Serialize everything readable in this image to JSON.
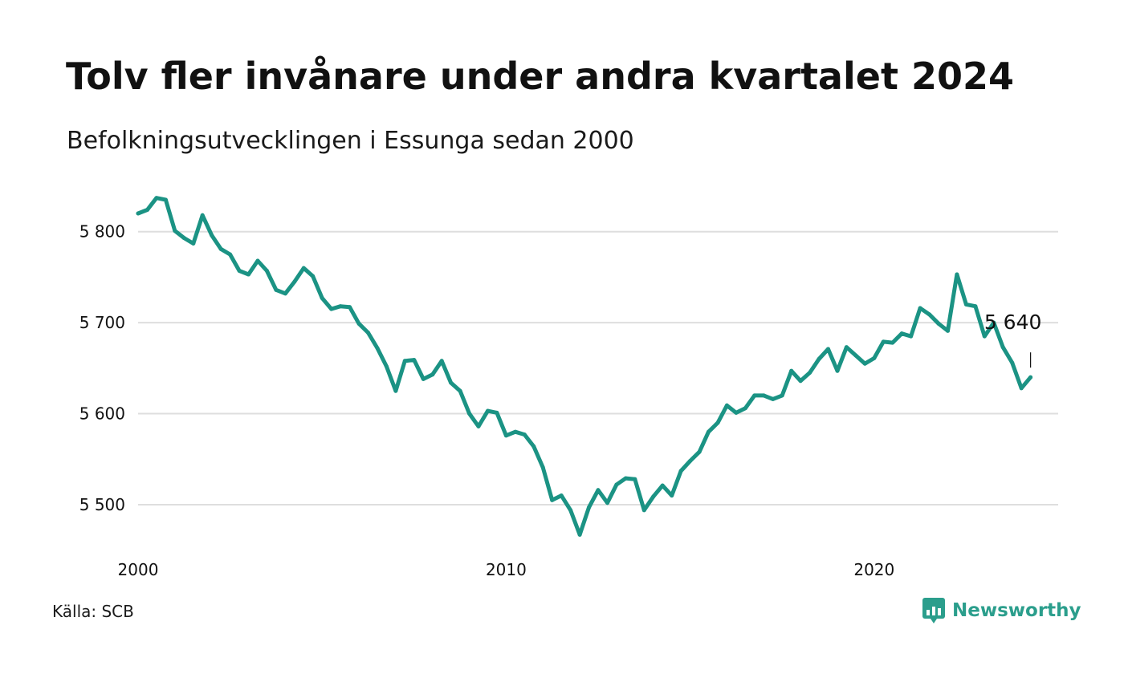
{
  "header": {
    "title": "Tolv fler invånare under andra kvartalet 2024",
    "subtitle": "Befolkningsutvecklingen i Essunga sedan 2000"
  },
  "footer": {
    "source": "Källa: SCB",
    "brand": "Newsworthy",
    "brand_icon": "newsworthy-chart-bubble-icon"
  },
  "colors": {
    "line": "#1b9384",
    "grid": "#dedede",
    "brand": "#2b9e8c"
  },
  "chart_data": {
    "type": "line",
    "title": "Tolv fler invånare under andra kvartalet 2024",
    "subtitle": "Befolkningsutvecklingen i Essunga sedan 2000",
    "xlabel": "",
    "ylabel": "",
    "xlim": [
      2000.0,
      2025.0
    ],
    "ylim": [
      5455,
      5850
    ],
    "x_ticks": [
      2000,
      2010,
      2020
    ],
    "x_tick_labels": [
      "2000",
      "2010",
      "2020"
    ],
    "y_ticks": [
      5500,
      5600,
      5700,
      5800
    ],
    "y_tick_labels": [
      "5 500",
      "5 600",
      "5 700",
      "5 800"
    ],
    "grid": true,
    "legend": "none",
    "annotation": {
      "label": "5 640",
      "x": 2024.25,
      "value": 5640
    },
    "series": [
      {
        "x": [
          2000.0,
          2000.25,
          2000.5,
          2000.75,
          2001.0,
          2001.25,
          2001.5,
          2001.75,
          2002.0,
          2002.25,
          2002.5,
          2002.75,
          2003.0,
          2003.25,
          2003.5,
          2003.75,
          2004.0,
          2004.25,
          2004.5,
          2004.75,
          2005.0,
          2005.25,
          2005.5,
          2005.75,
          2006.0,
          2006.25,
          2006.5,
          2006.75,
          2007.0,
          2007.25,
          2007.5,
          2007.75,
          2008.0,
          2008.25,
          2008.5,
          2008.75,
          2009.0,
          2009.25,
          2009.5,
          2009.75,
          2010.0,
          2010.25,
          2010.5,
          2010.75,
          2011.0,
          2011.25,
          2011.5,
          2011.75,
          2012.0,
          2012.25,
          2012.5,
          2012.75,
          2013.0,
          2013.25,
          2013.5,
          2013.75,
          2014.0,
          2014.25,
          2014.5,
          2014.75,
          2015.0,
          2015.25,
          2015.5,
          2015.75,
          2016.0,
          2016.25,
          2016.5,
          2016.75,
          2017.0,
          2017.25,
          2017.5,
          2017.75,
          2018.0,
          2018.25,
          2018.5,
          2018.75,
          2019.0,
          2019.25,
          2019.5,
          2019.75,
          2020.0,
          2020.25,
          2020.5,
          2020.75,
          2021.0,
          2021.25,
          2021.5,
          2021.75,
          2022.0,
          2022.25,
          2022.5,
          2022.75,
          2023.0,
          2023.25,
          2023.5,
          2023.75,
          2024.0,
          2024.25
        ],
        "values": [
          5820,
          5824,
          5837,
          5835,
          5801,
          5793,
          5787,
          5818,
          5796,
          5781,
          5775,
          5757,
          5753,
          5768,
          5757,
          5736,
          5732,
          5745,
          5760,
          5751,
          5727,
          5715,
          5718,
          5717,
          5699,
          5689,
          5672,
          5652,
          5625,
          5658,
          5659,
          5638,
          5643,
          5658,
          5634,
          5625,
          5600,
          5586,
          5603,
          5601,
          5576,
          5580,
          5577,
          5564,
          5541,
          5505,
          5510,
          5494,
          5467,
          5497,
          5516,
          5502,
          5522,
          5529,
          5528,
          5494,
          5509,
          5521,
          5510,
          5537,
          5548,
          5558,
          5580,
          5590,
          5609,
          5601,
          5606,
          5620,
          5620,
          5616,
          5620,
          5647,
          5636,
          5645,
          5660,
          5671,
          5647,
          5673,
          5664,
          5655,
          5661,
          5679,
          5678,
          5688,
          5685,
          5716,
          5709,
          5699,
          5691,
          5753,
          5720,
          5718,
          5685,
          5700,
          5673,
          5656,
          5628,
          5640
        ]
      }
    ]
  }
}
